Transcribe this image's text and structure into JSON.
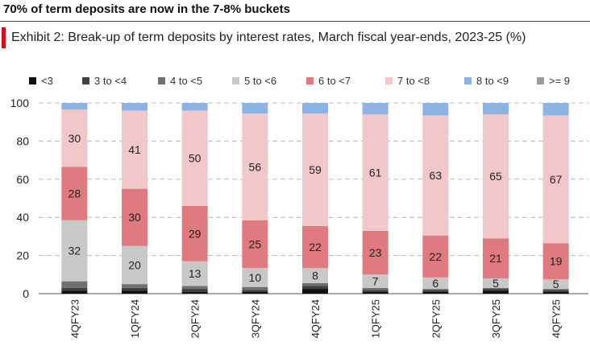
{
  "headline": "70% of term deposits are now in the 7-8% buckets",
  "exhibit_title": "Exhibit 2: Break-up of term deposits by interest rates, March fiscal year-ends, 2023-25 (%)",
  "chart_data": {
    "type": "bar",
    "stacked": true,
    "title": "Exhibit 2: Break-up of term deposits by interest rates, March fiscal year-ends, 2023-25 (%)",
    "xlabel": "",
    "ylabel": "",
    "ylim": [
      0,
      100
    ],
    "yticks": [
      0,
      20,
      40,
      60,
      80,
      100
    ],
    "grid": "horizontal dashed",
    "legend_position": "top",
    "categories": [
      "4QFY23",
      "1QFY24",
      "2QFY24",
      "3QFY24",
      "4QFY24",
      "1QFY25",
      "2QFY25",
      "3QFY25",
      "4QFY25"
    ],
    "series": [
      {
        "name": "<3",
        "color": "#111111",
        "values": [
          1.5,
          1.5,
          1,
          1,
          2.5,
          1,
          1,
          1.5,
          1
        ]
      },
      {
        "name": "3 to <4",
        "color": "#404040",
        "values": [
          1.5,
          1.5,
          1.5,
          1,
          1.5,
          1,
          1,
          1,
          1
        ]
      },
      {
        "name": "4 to <5",
        "color": "#707070",
        "values": [
          3.5,
          2,
          1.5,
          1.5,
          1.5,
          1,
          0.5,
          0.5,
          0.5
        ]
      },
      {
        "name": "5 to <6",
        "color": "#c8c8c8",
        "values": [
          32,
          20,
          13,
          10,
          8,
          7,
          6,
          5,
          5
        ]
      },
      {
        "name": "6 to <7",
        "color": "#de7a80",
        "values": [
          28,
          30,
          29,
          25,
          22,
          23,
          22,
          21,
          19
        ]
      },
      {
        "name": "7 to <8",
        "color": "#f2c7c9",
        "values": [
          30,
          41,
          50,
          56,
          59,
          61,
          63,
          65,
          67
        ]
      },
      {
        "name": "8 to <9",
        "color": "#8db3e2",
        "values": [
          3.5,
          4,
          4,
          5.5,
          5.5,
          6,
          6.5,
          6,
          6.5
        ]
      },
      {
        "name": ">= 9",
        "color": "#9a9a9a",
        "values": [
          0,
          0,
          0,
          0,
          0,
          0,
          0,
          0,
          0
        ]
      }
    ],
    "data_labels": {
      "5 to <6": [
        32,
        20,
        13,
        10,
        8,
        7,
        6,
        5,
        5
      ],
      "6 to <7": [
        28,
        30,
        29,
        25,
        22,
        23,
        22,
        21,
        19
      ],
      "7 to <8": [
        30,
        41,
        50,
        56,
        59,
        61,
        63,
        65,
        67
      ]
    }
  }
}
